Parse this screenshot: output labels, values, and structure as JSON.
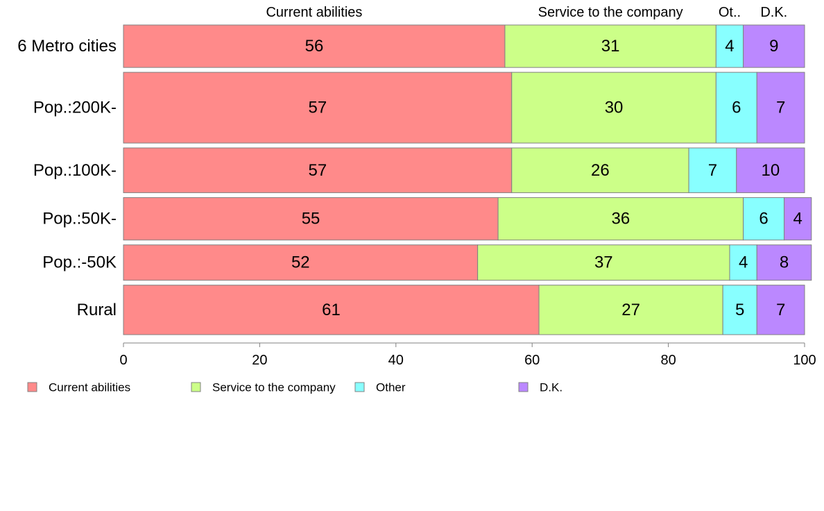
{
  "chart_data": {
    "type": "bar",
    "orientation": "horizontal",
    "stacked": true,
    "categories": [
      "6 Metro cities",
      "Pop.:200K-",
      "Pop.:100K-",
      "Pop.:50K-",
      "Pop.:-50K",
      "Rural"
    ],
    "series": [
      {
        "name": "Current abilities",
        "color": "#ff8a8a",
        "values": [
          56,
          57,
          57,
          55,
          52,
          61
        ]
      },
      {
        "name": "Service to the company",
        "color": "#ccff88",
        "values": [
          31,
          30,
          26,
          36,
          37,
          27
        ]
      },
      {
        "name": "Other",
        "color": "#88ffff",
        "values": [
          4,
          6,
          7,
          6,
          4,
          5
        ]
      },
      {
        "name": "D.K.",
        "color": "#bb88ff",
        "values": [
          9,
          7,
          10,
          4,
          8,
          7
        ]
      }
    ],
    "top_labels": [
      "Current abilities",
      "Service to the company",
      "Ot..",
      "D.K."
    ],
    "bar_widths_relative": [
      0.9,
      1.5,
      0.95,
      0.9,
      0.75,
      1.05
    ],
    "xlim": [
      0,
      100
    ],
    "xticks": [
      0,
      20,
      40,
      60,
      80,
      100
    ],
    "legend_position": "bottom-left",
    "grid": false
  }
}
